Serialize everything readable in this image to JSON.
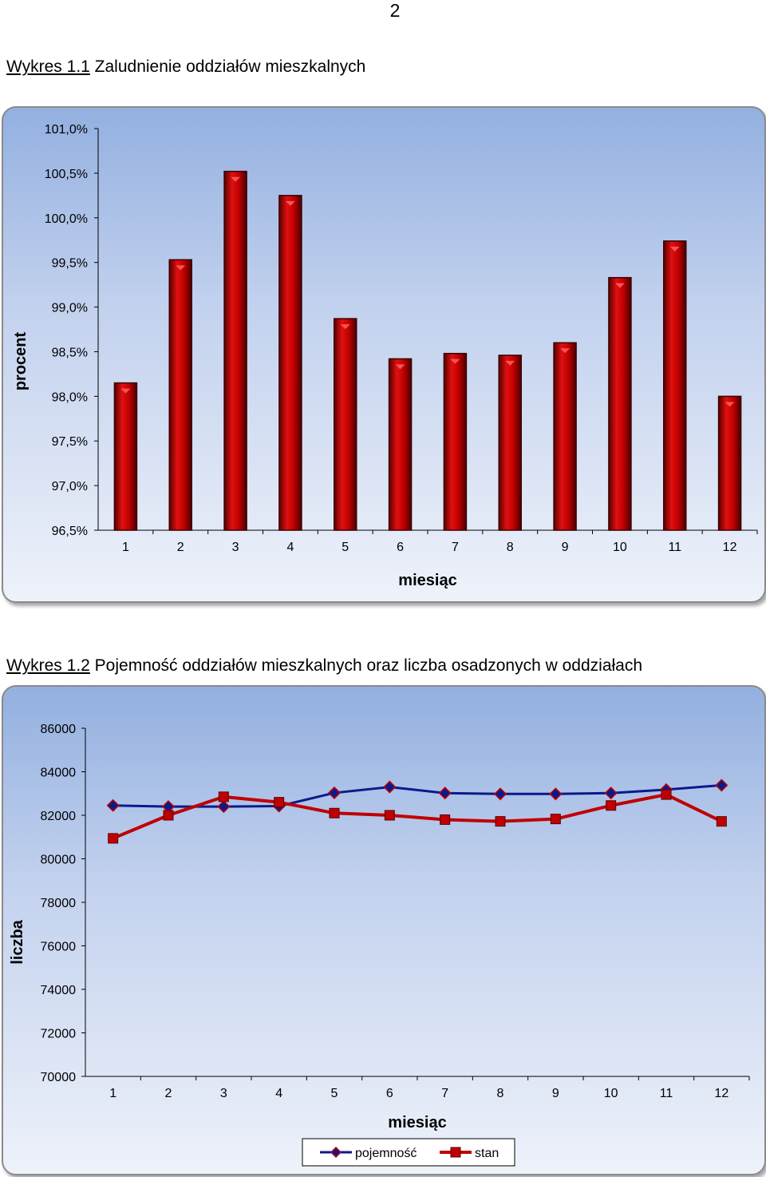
{
  "page": {
    "number": "2"
  },
  "captions": [
    {
      "label": "Wykres 1.1",
      "text": " Zaludnienie oddziałów mieszkalnych"
    },
    {
      "label": "Wykres 1.2",
      "text": " Pojemność oddziałów mieszkalnych oraz liczba osadzonych w oddziałach"
    }
  ],
  "chart_data": [
    {
      "type": "bar",
      "title": "",
      "xlabel": "miesiąc",
      "ylabel": "procent",
      "categories": [
        "1",
        "2",
        "3",
        "4",
        "5",
        "6",
        "7",
        "8",
        "9",
        "10",
        "11",
        "12"
      ],
      "values": [
        98.15,
        99.53,
        100.52,
        100.25,
        98.87,
        98.42,
        98.48,
        98.46,
        98.6,
        99.33,
        99.74,
        98.0
      ],
      "ylim": [
        96.5,
        101.0
      ],
      "yticks": [
        "96,5%",
        "97,0%",
        "97,5%",
        "98,0%",
        "98,5%",
        "99,0%",
        "99,5%",
        "100,0%",
        "100,5%",
        "101,0%"
      ],
      "color": "#c00000",
      "grid": false
    },
    {
      "type": "line",
      "title": "",
      "xlabel": "miesiąc",
      "ylabel": "liczba",
      "categories": [
        "1",
        "2",
        "3",
        "4",
        "5",
        "6",
        "7",
        "8",
        "9",
        "10",
        "11",
        "12"
      ],
      "ylim": [
        70000,
        86000
      ],
      "yticks": [
        "70000",
        "72000",
        "74000",
        "76000",
        "78000",
        "80000",
        "82000",
        "84000",
        "86000"
      ],
      "series": [
        {
          "name": "pojemność",
          "color": "#0a1a8c",
          "marker": "diamond",
          "values": [
            82450,
            82400,
            82400,
            82420,
            83030,
            83300,
            83020,
            82980,
            82980,
            83020,
            83180,
            83380
          ]
        },
        {
          "name": "stan",
          "color": "#c00000",
          "marker": "square",
          "values": [
            80940,
            82000,
            82850,
            82600,
            82100,
            82000,
            81800,
            81720,
            81830,
            82450,
            82950,
            81720
          ]
        }
      ],
      "legend": "bottom",
      "grid": false
    }
  ]
}
